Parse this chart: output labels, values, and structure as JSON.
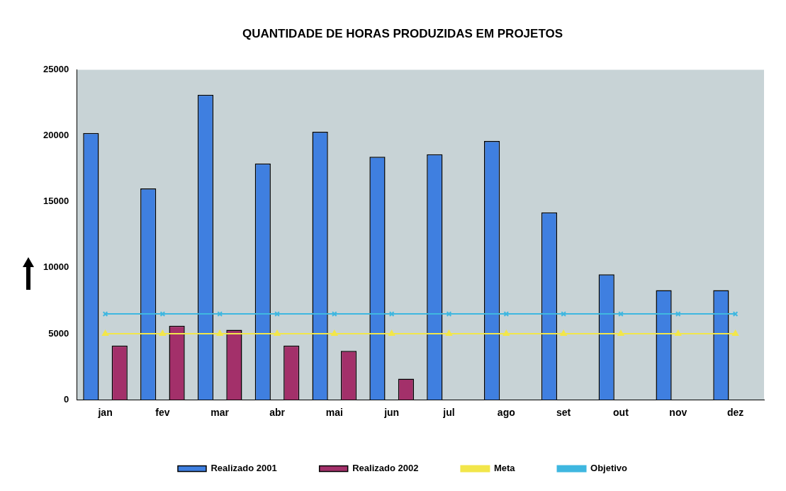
{
  "chart_data": {
    "type": "bar",
    "title": "QUANTIDADE DE HORAS PRODUZIDAS EM PROJETOS",
    "categories": [
      "jan",
      "fev",
      "mar",
      "abr",
      "mai",
      "jun",
      "jul",
      "ago",
      "set",
      "out",
      "nov",
      "dez"
    ],
    "series": [
      {
        "name": "Realizado 2001",
        "color": "#3f7fe0",
        "values": [
          20200,
          16000,
          23100,
          17900,
          20300,
          18400,
          18600,
          19600,
          14200,
          9500,
          8300,
          8300
        ]
      },
      {
        "name": "Realizado 2002",
        "color": "#a3306a",
        "values": [
          4100,
          5600,
          5300,
          4100,
          3700,
          1600,
          null,
          null,
          null,
          null,
          null,
          null
        ]
      },
      {
        "name": "Meta",
        "type": "line",
        "color": "#f2e64a",
        "marker": "triangle",
        "values": [
          5000,
          5000,
          5000,
          5000,
          5000,
          5000,
          5000,
          5000,
          5000,
          5000,
          5000,
          5000
        ]
      },
      {
        "name": "Objetivo",
        "type": "line",
        "color": "#3fb7e0",
        "marker": "cross",
        "values": [
          6500,
          6500,
          6500,
          6500,
          6500,
          6500,
          6500,
          6500,
          6500,
          6500,
          6500,
          6500
        ]
      }
    ],
    "ylim": [
      0,
      25000
    ],
    "yticks": [
      0,
      5000,
      10000,
      15000,
      20000,
      25000
    ],
    "grid": false,
    "legend": "bottom"
  }
}
